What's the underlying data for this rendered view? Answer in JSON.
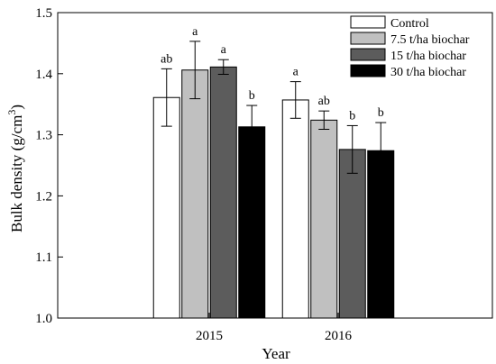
{
  "chart_data": {
    "type": "bar",
    "categories": [
      "2015",
      "2016"
    ],
    "xlabel": "Year",
    "ylabel_main": "Bulk density (g/cm",
    "ylabel_sup": "3",
    "ylabel_tail": ")",
    "ylim": [
      1.0,
      1.5
    ],
    "yticks": [
      "1.0",
      "1.1",
      "1.2",
      "1.3",
      "1.4",
      "1.5"
    ],
    "legend_position": "top-right",
    "series": [
      {
        "name": "Control",
        "color": "#ffffff",
        "values": [
          1.361,
          1.357
        ],
        "errors": [
          0.047,
          0.03
        ],
        "letters": [
          "ab",
          "a"
        ]
      },
      {
        "name": "7.5 t/ha biochar",
        "color": "#c0c0c0",
        "values": [
          1.406,
          1.324
        ],
        "errors": [
          0.047,
          0.015
        ],
        "letters": [
          "a",
          "ab"
        ]
      },
      {
        "name": "15 t/ha biochar",
        "color": "#5c5c5c",
        "values": [
          1.411,
          1.276
        ],
        "errors": [
          0.012,
          0.039
        ],
        "letters": [
          "a",
          "b"
        ]
      },
      {
        "name": "30 t/ha biochar",
        "color": "#000000",
        "values": [
          1.313,
          1.274
        ],
        "errors": [
          0.035,
          0.046
        ],
        "letters": [
          "b",
          "b"
        ]
      }
    ]
  }
}
